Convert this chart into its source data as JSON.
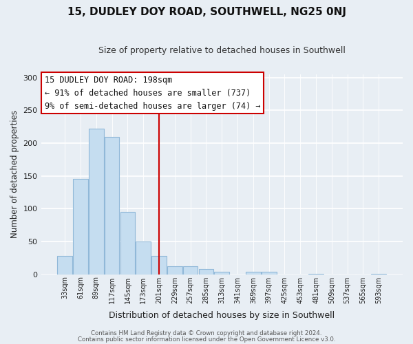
{
  "title": "15, DUDLEY DOY ROAD, SOUTHWELL, NG25 0NJ",
  "subtitle": "Size of property relative to detached houses in Southwell",
  "xlabel": "Distribution of detached houses by size in Southwell",
  "ylabel": "Number of detached properties",
  "bar_color": "#c5ddf0",
  "bar_edge_color": "#90b8d8",
  "background_color": "#e8eef4",
  "bin_labels": [
    "33sqm",
    "61sqm",
    "89sqm",
    "117sqm",
    "145sqm",
    "173sqm",
    "201sqm",
    "229sqm",
    "257sqm",
    "285sqm",
    "313sqm",
    "341sqm",
    "369sqm",
    "397sqm",
    "425sqm",
    "453sqm",
    "481sqm",
    "509sqm",
    "537sqm",
    "565sqm",
    "593sqm"
  ],
  "bar_heights": [
    28,
    146,
    222,
    210,
    95,
    50,
    28,
    12,
    12,
    8,
    4,
    0,
    4,
    4,
    0,
    0,
    1,
    0,
    0,
    0,
    1
  ],
  "vline_x": 6.0,
  "vline_color": "#cc0000",
  "ylim": [
    0,
    305
  ],
  "yticks": [
    0,
    50,
    100,
    150,
    200,
    250,
    300
  ],
  "annotation_title": "15 DUDLEY DOY ROAD: 198sqm",
  "annotation_line1": "← 91% of detached houses are smaller (737)",
  "annotation_line2": "9% of semi-detached houses are larger (74) →",
  "annotation_box_facecolor": "#ffffff",
  "annotation_border_color": "#cc0000",
  "footer_line1": "Contains HM Land Registry data © Crown copyright and database right 2024.",
  "footer_line2": "Contains public sector information licensed under the Open Government Licence v3.0."
}
